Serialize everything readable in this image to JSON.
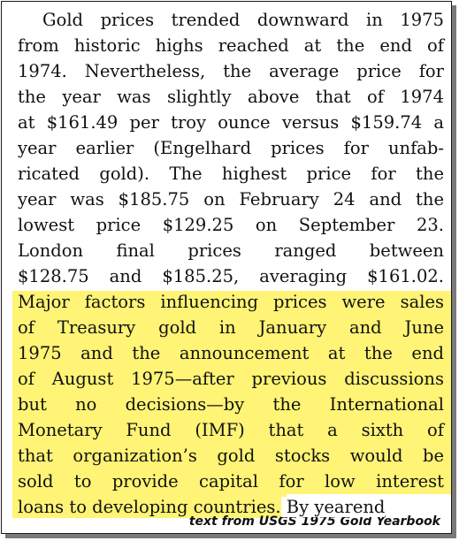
{
  "document": {
    "lines": [
      "Gold prices trended downward in 1975",
      "from historic highs reached at the end of",
      "1974. Nevertheless, the average price for",
      "the year was slightly above that of 1974",
      "at $161.49 per troy ounce versus $159.74 a",
      "year earlier (Engelhard prices for unfab-",
      "ricated gold). The highest price for the",
      "year was $185.75 on February 24 and the",
      "lowest price $129.25 on September 23.",
      "London final prices ranged between",
      "$128.75 and $185.25, averaging $161.02.",
      "Major factors influencing prices were sales",
      "of Treasury gold in January and June",
      "1975 and the announcement at the end",
      "of August 1975—after previous discussions",
      "but no decisions—by the International",
      "Monetary Fund (IMF) that a sixth of",
      "that organization’s gold stocks would be",
      "sold to provide capital for low interest"
    ],
    "last_line_highlighted": "loans to developing countries.",
    "last_line_rest": " By yearend",
    "highlight_color": "#fff475"
  },
  "caption": "text from USGS 1975 Gold Yearbook"
}
